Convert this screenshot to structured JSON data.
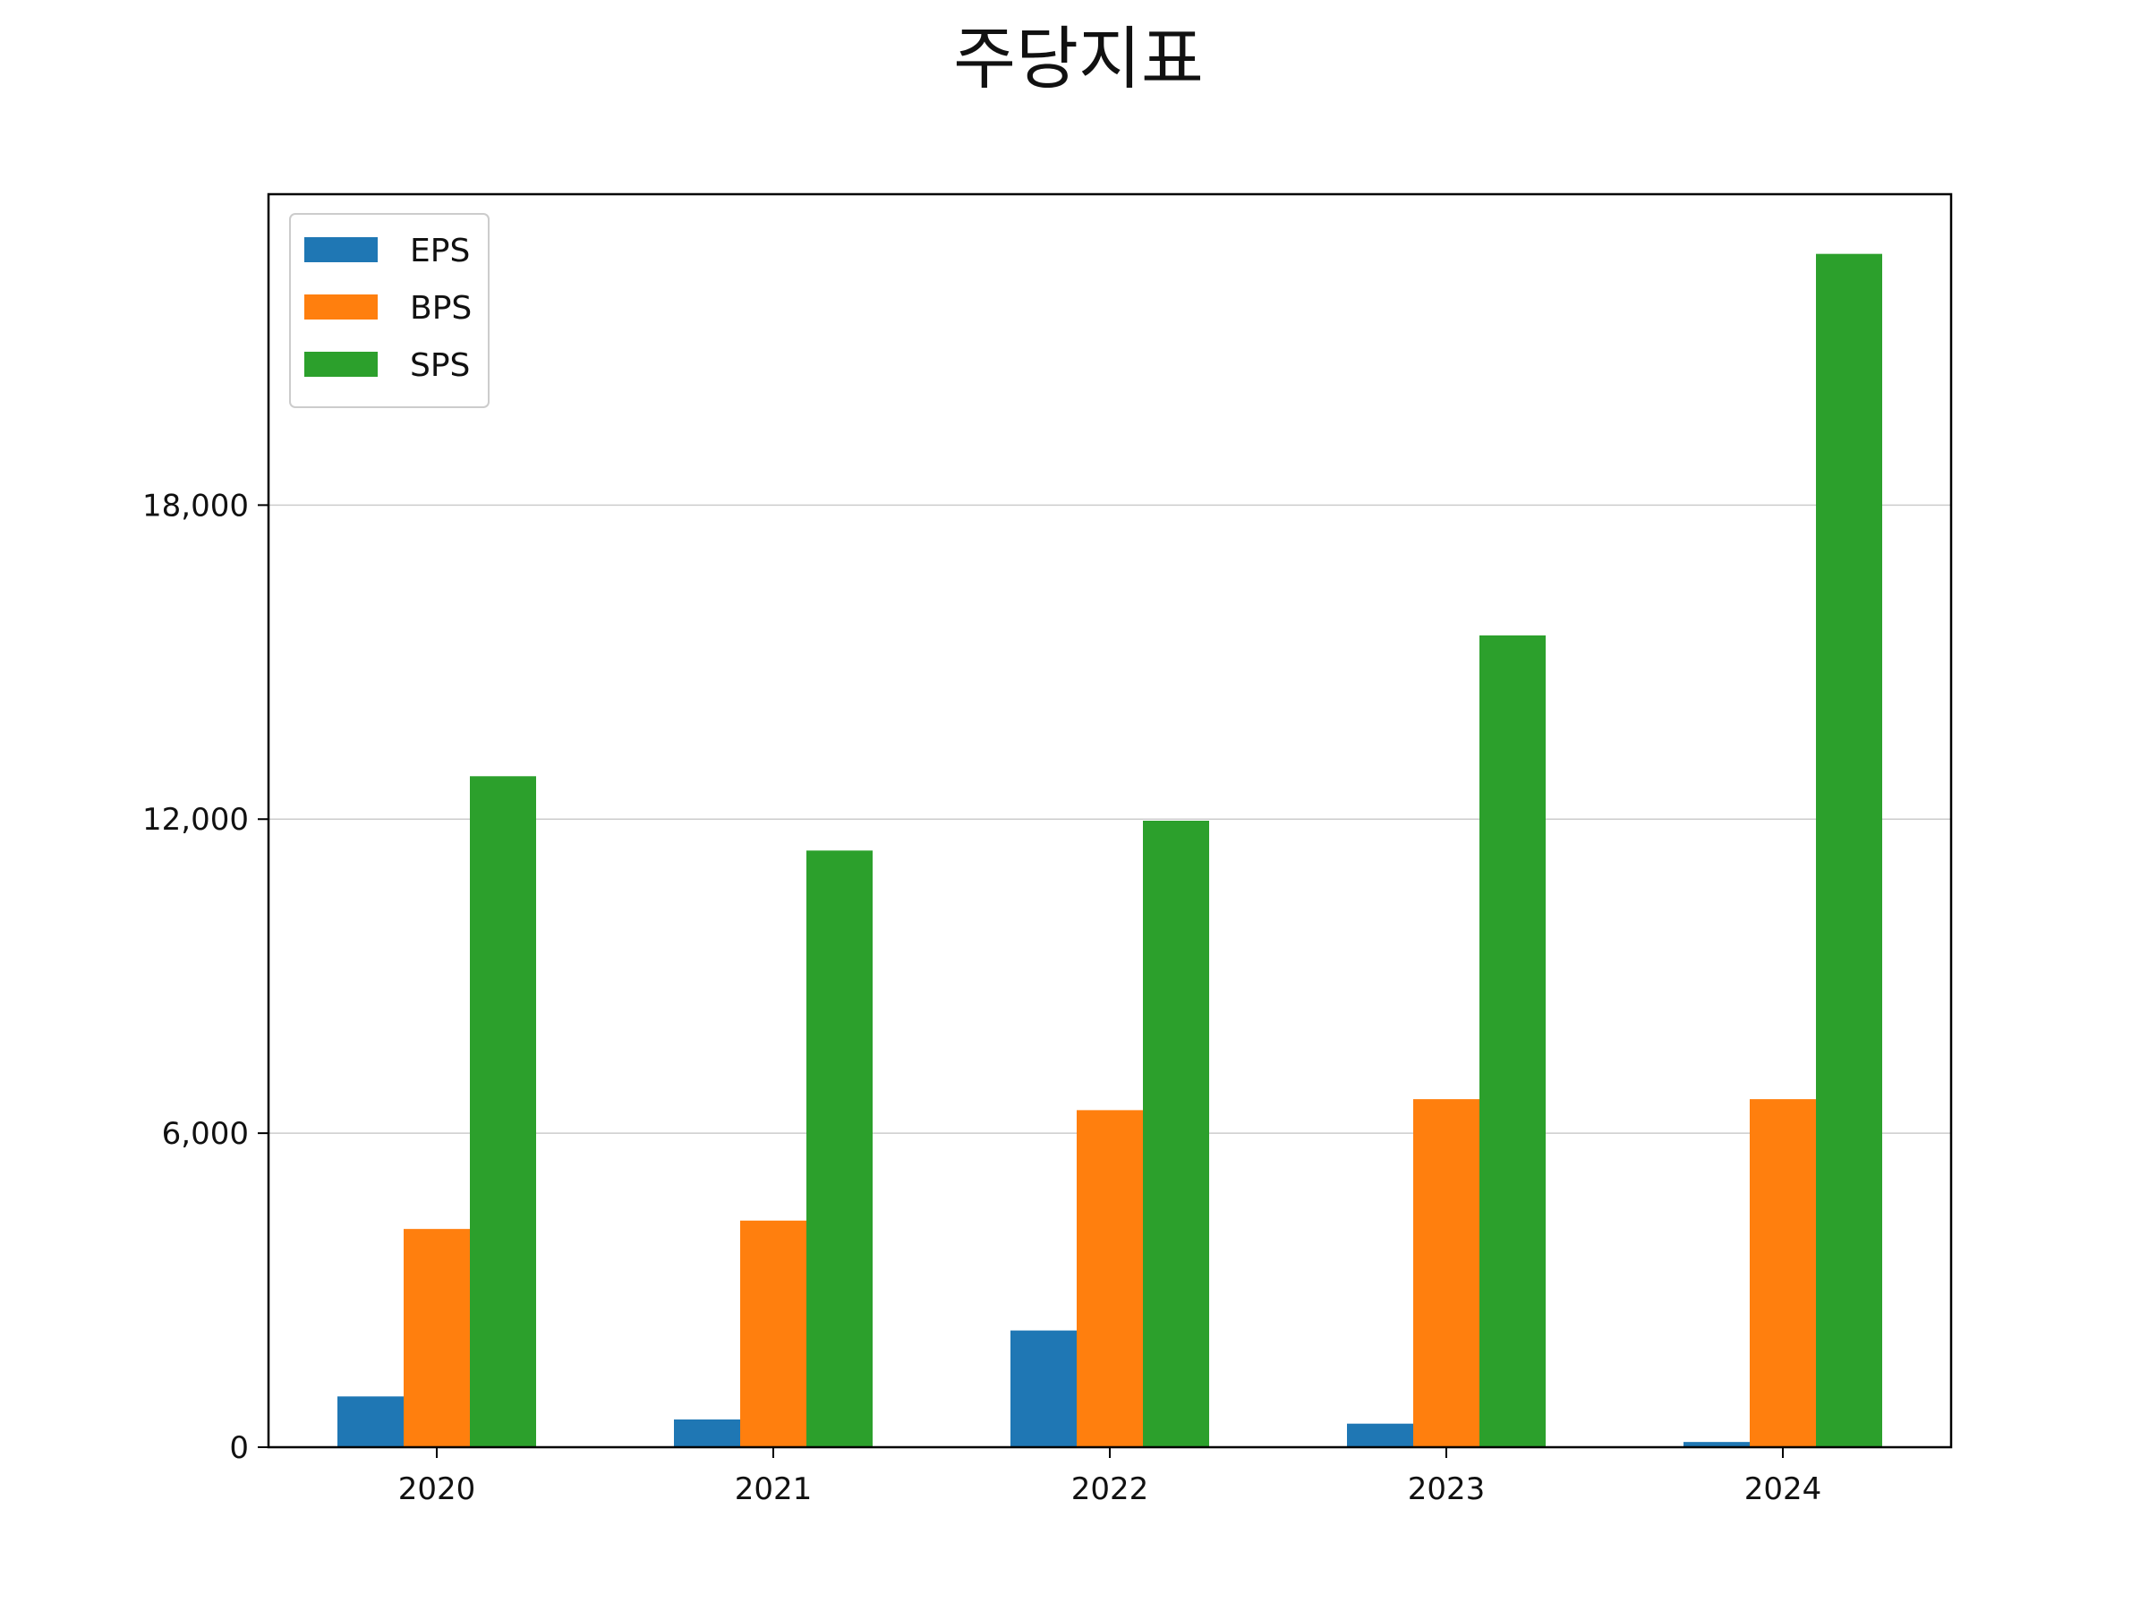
{
  "chart_data": {
    "type": "bar",
    "title": "주당지표",
    "xlabel": "",
    "ylabel": "",
    "categories": [
      "2020",
      "2021",
      "2022",
      "2023",
      "2024"
    ],
    "series": [
      {
        "name": "EPS",
        "color": "#1f77b4",
        "values": [
          970,
          530,
          2230,
          450,
          100
        ]
      },
      {
        "name": "BPS",
        "color": "#ff7f0e",
        "values": [
          4170,
          4330,
          6440,
          6650,
          6650
        ]
      },
      {
        "name": "SPS",
        "color": "#2ca02c",
        "values": [
          12820,
          11400,
          11970,
          15510,
          22800
        ]
      }
    ],
    "ylim": [
      0,
      23940
    ],
    "yticks": [
      0,
      6000,
      12000,
      18000
    ],
    "ytick_labels": [
      "0",
      "6,000",
      "12,000",
      "18,000"
    ],
    "grid": "y",
    "legend_position": "top-left"
  }
}
